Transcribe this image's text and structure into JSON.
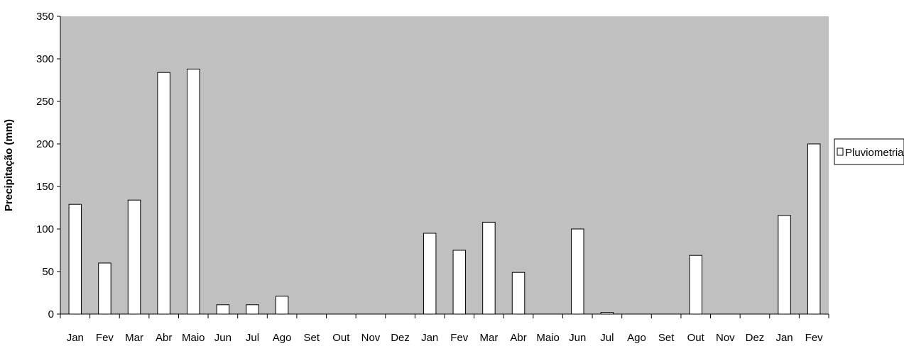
{
  "chart_data": {
    "type": "bar",
    "title": "",
    "xlabel": "",
    "ylabel": "Precipitação (mm)",
    "ylim": [
      0,
      350
    ],
    "yticks": [
      0,
      50,
      100,
      150,
      200,
      250,
      300,
      350
    ],
    "categories": [
      "Jan",
      "Fev",
      "Mar",
      "Abr",
      "Maio",
      "Jun",
      "Jul",
      "Ago",
      "Set",
      "Out",
      "Nov",
      "Dez",
      "Jan",
      "Fev",
      "Mar",
      "Abr",
      "Maio",
      "Jun",
      "Jul",
      "Ago",
      "Set",
      "Out",
      "Nov",
      "Dez",
      "Jan",
      "Fev"
    ],
    "series": [
      {
        "name": "Pluviometria",
        "values": [
          129,
          60,
          134,
          284,
          288,
          11,
          11,
          21,
          0,
          0,
          0,
          0,
          95,
          75,
          108,
          49,
          0,
          100,
          2,
          0,
          0,
          69,
          0,
          0,
          116,
          200
        ]
      }
    ],
    "grid": false,
    "legend": "right",
    "colors": {
      "plot_background": "#c0c0c0",
      "bar_fill": "#ffffff",
      "bar_stroke": "#000000"
    }
  }
}
